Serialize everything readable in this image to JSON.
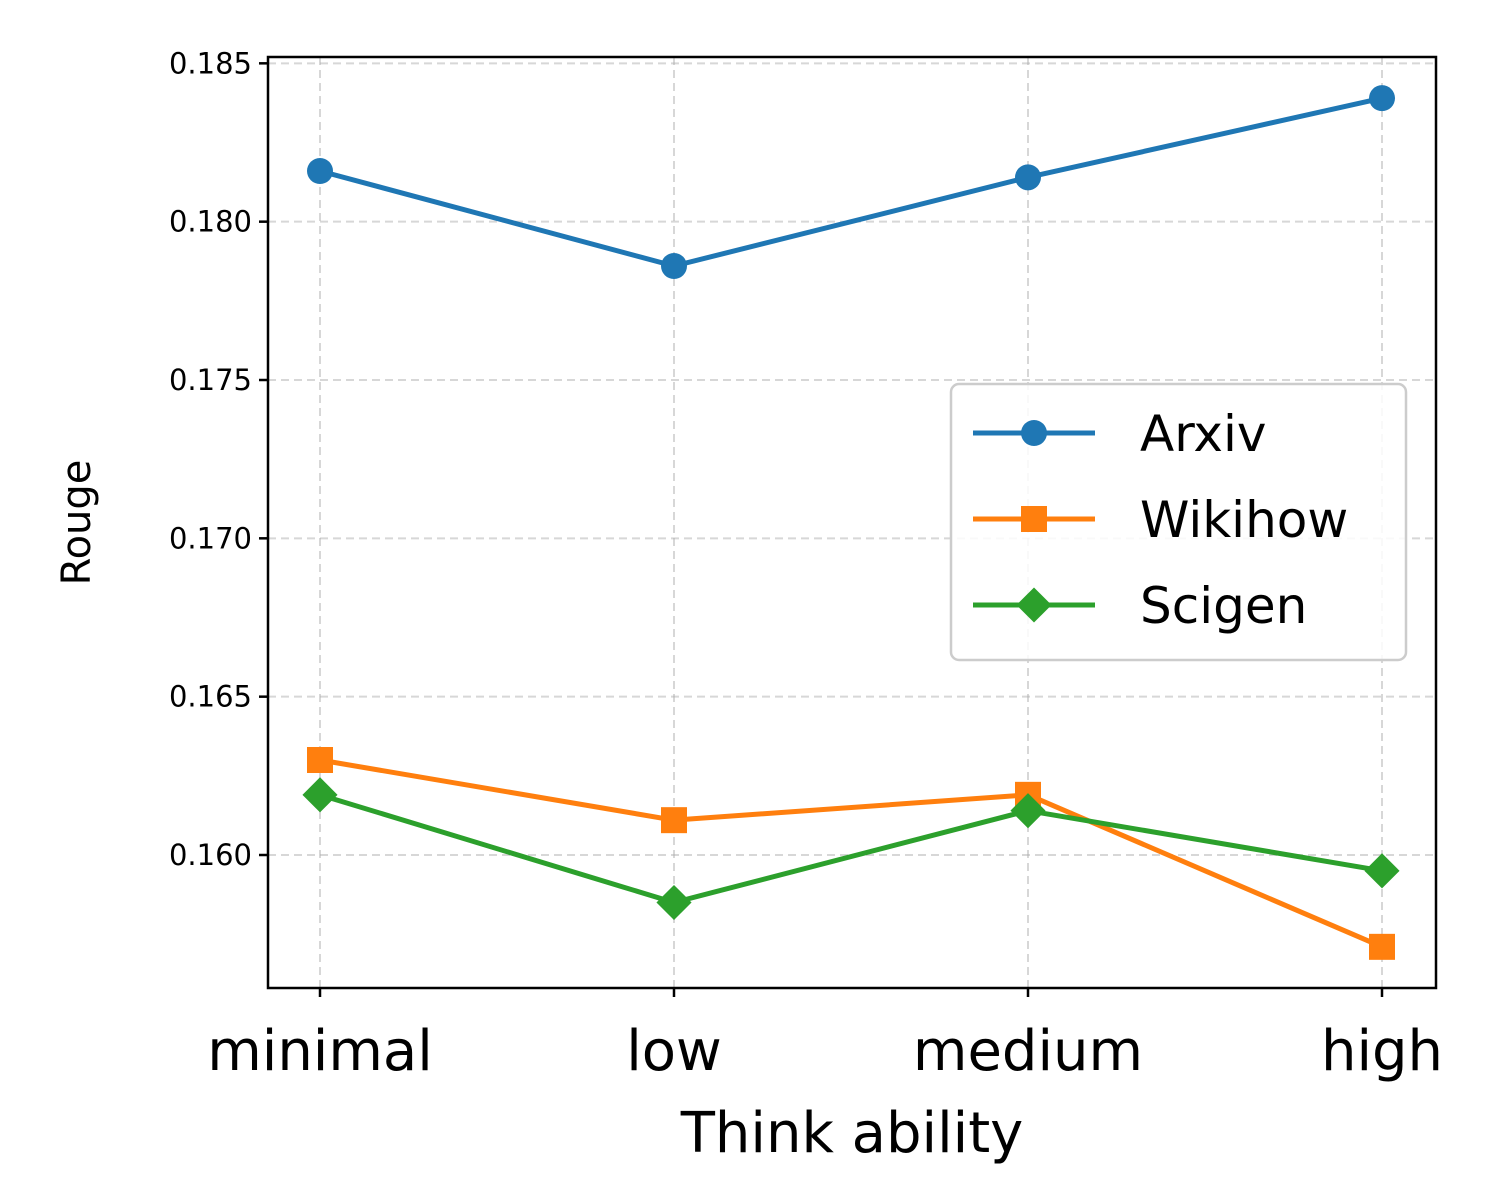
{
  "chart_data": {
    "type": "line",
    "title": "",
    "xlabel": "Think ability",
    "ylabel": "Rouge",
    "categories": [
      "minimal",
      "low",
      "medium",
      "high"
    ],
    "ylim": [
      0.1558,
      0.1852
    ],
    "yticks": [
      0.16,
      0.165,
      0.17,
      0.175,
      0.18,
      0.185
    ],
    "ytick_labels": [
      "0.160",
      "0.165",
      "0.170",
      "0.175",
      "0.180",
      "0.185"
    ],
    "grid": true,
    "legend_position": "center-right",
    "series": [
      {
        "name": "Arxiv",
        "marker": "circle",
        "color": "#1f77b4",
        "values": [
          0.1816,
          0.1786,
          0.1814,
          0.1839
        ]
      },
      {
        "name": "Wikihow",
        "marker": "square",
        "color": "#ff7f0e",
        "values": [
          0.163,
          0.1611,
          0.1619,
          0.1571
        ]
      },
      {
        "name": "Scigen",
        "marker": "diamond",
        "color": "#2ca02c",
        "values": [
          0.1619,
          0.1585,
          0.1614,
          0.1595
        ]
      }
    ]
  }
}
